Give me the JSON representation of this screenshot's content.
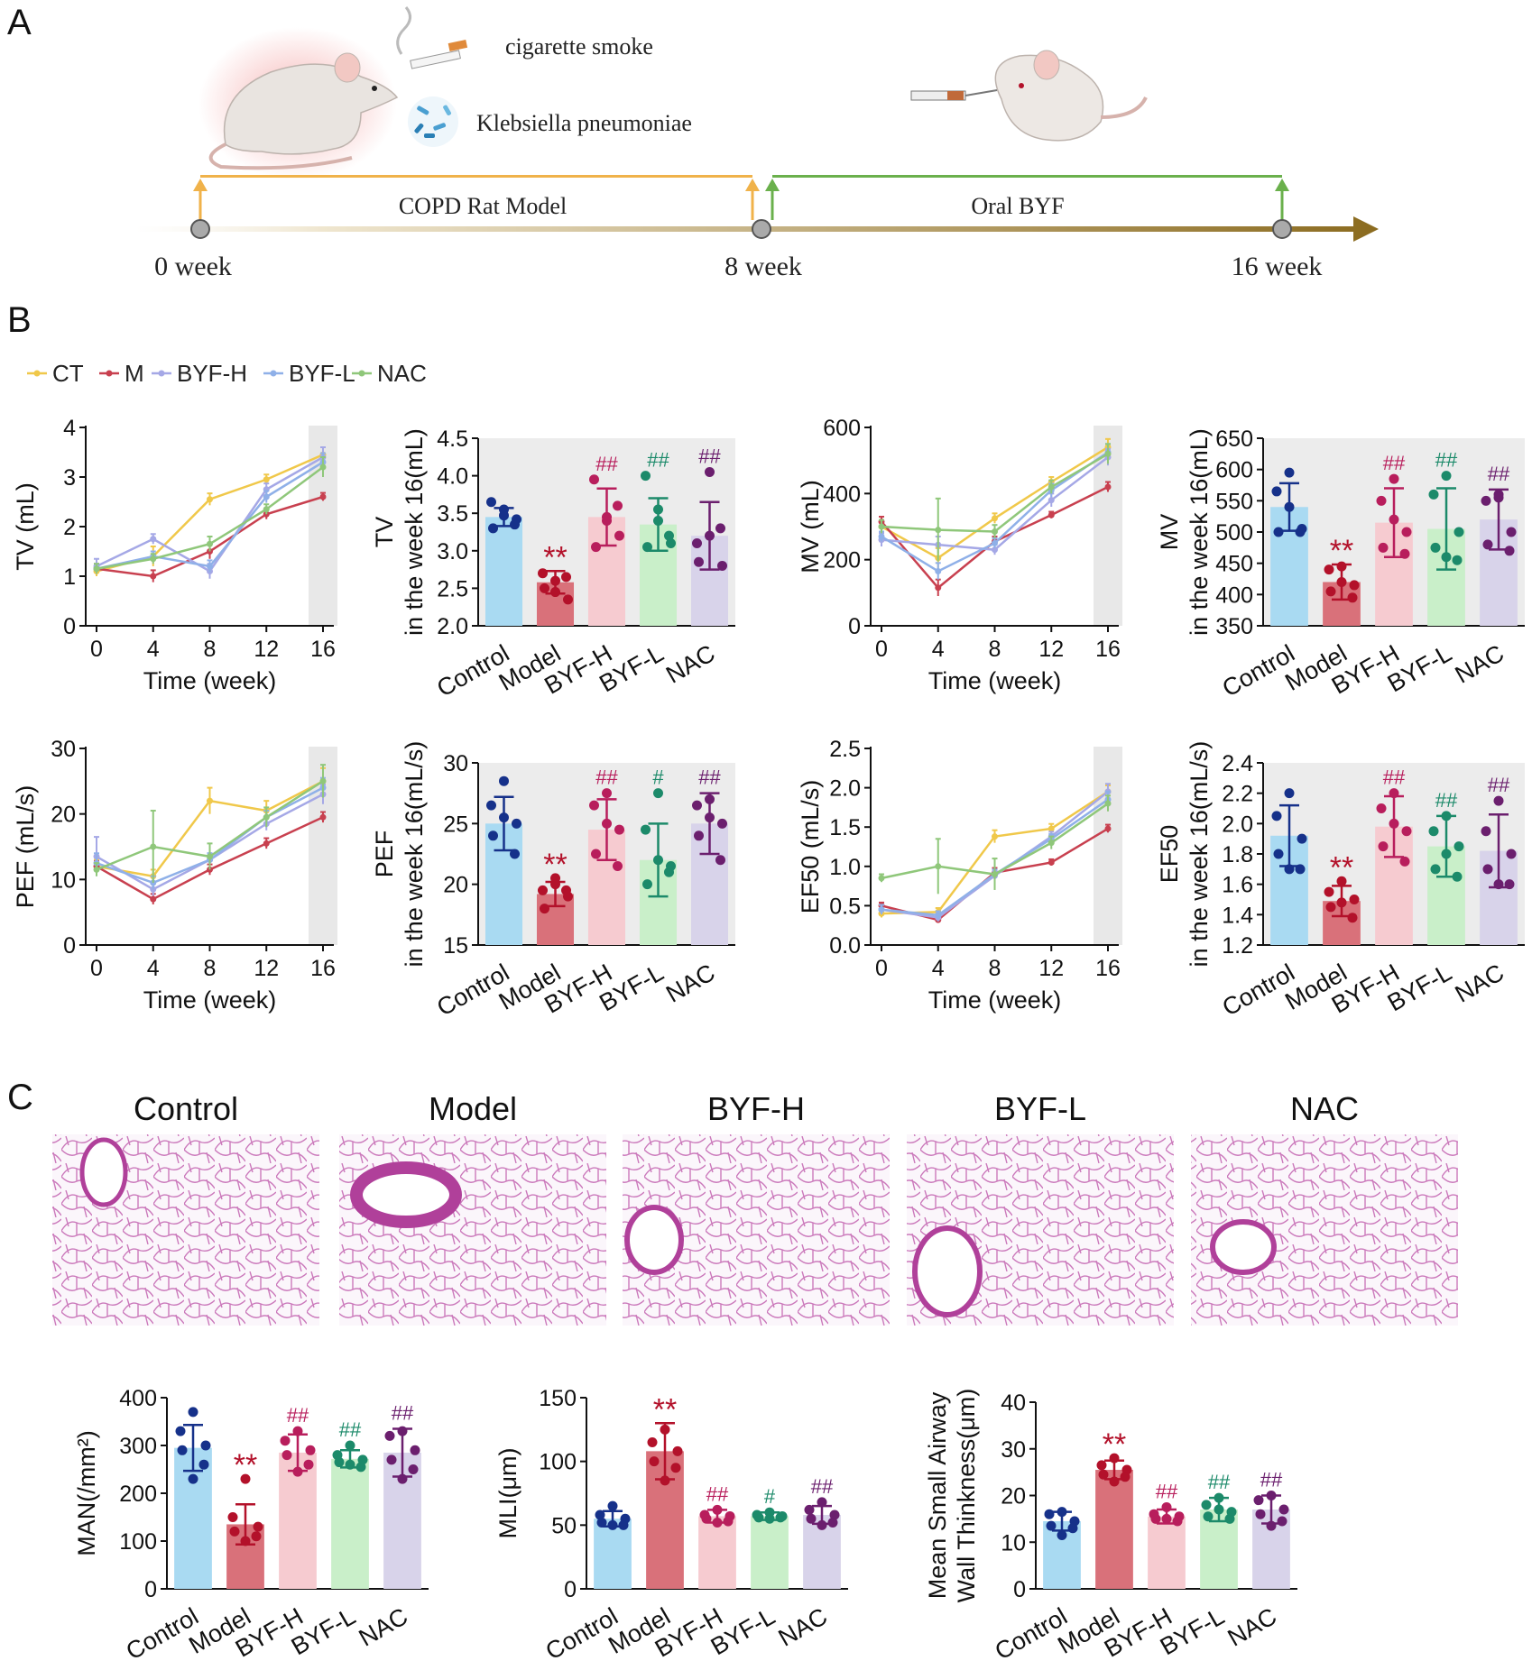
{
  "panel_letters": [
    "A",
    "B",
    "C"
  ],
  "timeline": {
    "smoke_label": "cigarette smoke",
    "bacteria_label": "Klebsiella pneumoniae",
    "phase1_label": "COPD Rat Model",
    "phase2_label": "Oral BYF",
    "ticks": [
      "0 week",
      "8 week",
      "16 week"
    ],
    "phase1_color": "#f0b24a",
    "phase2_color": "#6ab04c",
    "arrow_color": "#8b6b1f"
  },
  "groups": [
    "Control",
    "Model",
    "BYF-H",
    "BYF-L",
    "NAC"
  ],
  "group_colors": {
    "fill": [
      "#a9daf2",
      "#d9717a",
      "#f6cbd0",
      "#c9efc9",
      "#d8d3ea"
    ],
    "dot": [
      "#16318a",
      "#b3112a",
      "#b81e5c",
      "#1c8a6a",
      "#6b1f6e"
    ]
  },
  "line_legend": {
    "items": [
      "CT",
      "M",
      "BYF-H",
      "BYF-L",
      "NAC"
    ],
    "colors": [
      "#f0c84a",
      "#c8404f",
      "#a5a8e6",
      "#8fb0e8",
      "#8fc77a"
    ]
  },
  "histology_titles": [
    "Control",
    "Model",
    "BYF-H",
    "BYF-L",
    "NAC"
  ],
  "histology_color": "#b0409a",
  "chart_data": [
    {
      "id": "tv-line",
      "type": "line",
      "x": [
        0,
        4,
        8,
        12,
        16
      ],
      "xlabel": "Time (week)",
      "ylabel": "TV (mL)",
      "ylim": [
        0,
        4
      ],
      "yticks": [
        0,
        1,
        2,
        3,
        4
      ],
      "xticks": [
        0,
        4,
        8,
        12,
        16
      ],
      "highlight_x": 16,
      "series": [
        {
          "name": "CT",
          "values": [
            1.1,
            1.4,
            2.55,
            2.95,
            3.45
          ],
          "err": [
            0.1,
            0.2,
            0.12,
            0.1,
            0.15
          ]
        },
        {
          "name": "M",
          "values": [
            1.15,
            1.0,
            1.5,
            2.25,
            2.6
          ],
          "err": [
            0.1,
            0.12,
            0.15,
            0.1,
            0.08
          ]
        },
        {
          "name": "BYF-H",
          "values": [
            1.2,
            1.75,
            1.1,
            2.75,
            3.4
          ],
          "err": [
            0.15,
            0.1,
            0.15,
            0.12,
            0.2
          ]
        },
        {
          "name": "BYF-L",
          "values": [
            1.15,
            1.4,
            1.2,
            2.6,
            3.3
          ],
          "err": [
            0.1,
            0.1,
            0.12,
            0.12,
            0.18
          ]
        },
        {
          "name": "NAC",
          "values": [
            1.15,
            1.35,
            1.65,
            2.35,
            3.2
          ],
          "err": [
            0.1,
            0.1,
            0.15,
            0.1,
            0.2
          ]
        }
      ]
    },
    {
      "id": "tv-bar",
      "type": "bar",
      "ylabel": "TV",
      "ylabel2": "in the week 16(mL)",
      "ylim": [
        2.0,
        4.5
      ],
      "yticks": [
        "2.0",
        "2.5",
        "3.0",
        "3.5",
        "4.0",
        "4.5"
      ],
      "values": [
        3.45,
        2.58,
        3.45,
        3.35,
        3.2
      ],
      "err": [
        0.12,
        0.15,
        0.38,
        0.35,
        0.45
      ],
      "points": [
        [
          3.47,
          3.65,
          3.42,
          3.3,
          3.35,
          3.55
        ],
        [
          2.6,
          2.7,
          2.35,
          2.5,
          2.65,
          2.45
        ],
        [
          3.4,
          3.95,
          3.2,
          3.05,
          3.6,
          3.45
        ],
        [
          3.55,
          4.0,
          3.1,
          3.05,
          3.2,
          3.4
        ],
        [
          4.05,
          3.1,
          2.8,
          2.85,
          3.3,
          3.2
        ]
      ],
      "annotations": [
        "",
        "**",
        "##",
        "##",
        "##"
      ]
    },
    {
      "id": "mv-line",
      "type": "line",
      "x": [
        0,
        4,
        8,
        12,
        16
      ],
      "xlabel": "Time (week)",
      "ylabel": "MV (mL)",
      "ylim": [
        0,
        600
      ],
      "yticks": [
        0,
        200,
        400,
        600
      ],
      "xticks": [
        0,
        4,
        8,
        12,
        16
      ],
      "highlight_x": 16,
      "series": [
        {
          "name": "CT",
          "values": [
            300,
            205,
            325,
            435,
            540
          ],
          "err": [
            20,
            30,
            15,
            15,
            25
          ]
        },
        {
          "name": "M",
          "values": [
            315,
            115,
            255,
            335,
            420
          ],
          "err": [
            15,
            25,
            15,
            10,
            15
          ]
        },
        {
          "name": "BYF-H",
          "values": [
            260,
            245,
            230,
            380,
            510
          ],
          "err": [
            20,
            25,
            15,
            20,
            25
          ]
        },
        {
          "name": "BYF-L",
          "values": [
            270,
            165,
            250,
            410,
            525
          ],
          "err": [
            15,
            25,
            15,
            20,
            25
          ]
        },
        {
          "name": "NAC",
          "values": [
            300,
            290,
            285,
            420,
            520
          ],
          "err": [
            20,
            95,
            20,
            20,
            30
          ]
        }
      ]
    },
    {
      "id": "mv-bar",
      "type": "bar",
      "ylabel": "MV",
      "ylabel2": "in the week 16(mL)",
      "ylim": [
        350,
        650
      ],
      "yticks": [
        "350",
        "400",
        "450",
        "500",
        "550",
        "600",
        "650"
      ],
      "values": [
        540,
        420,
        515,
        505,
        520
      ],
      "err": [
        38,
        28,
        55,
        65,
        48
      ],
      "points": [
        [
          595,
          565,
          505,
          500,
          500,
          540
        ],
        [
          445,
          440,
          415,
          405,
          395,
          420
        ],
        [
          585,
          550,
          500,
          475,
          465,
          520
        ],
        [
          590,
          560,
          500,
          475,
          455,
          460
        ],
        [
          560,
          550,
          500,
          480,
          470,
          555
        ]
      ],
      "annotations": [
        "",
        "**",
        "##",
        "##",
        "##"
      ]
    },
    {
      "id": "pef-line",
      "type": "line",
      "x": [
        0,
        4,
        8,
        12,
        16
      ],
      "xlabel": "Time (week)",
      "ylabel": "PEF (mL/s)",
      "ylim": [
        0,
        30
      ],
      "yticks": [
        0,
        10,
        20,
        30
      ],
      "xticks": [
        0,
        4,
        8,
        12,
        16
      ],
      "highlight_x": 16,
      "series": [
        {
          "name": "CT",
          "values": [
            12,
            10.5,
            22,
            20.5,
            25
          ],
          "err": [
            1,
            1,
            2,
            1.5,
            2
          ]
        },
        {
          "name": "M",
          "values": [
            12,
            7,
            11.5,
            15.5,
            19.5
          ],
          "err": [
            0.8,
            0.8,
            0.8,
            0.8,
            0.8
          ]
        },
        {
          "name": "BYF-H",
          "values": [
            13.5,
            8.5,
            13,
            18.5,
            23
          ],
          "err": [
            3,
            1,
            1,
            1,
            1.5
          ]
        },
        {
          "name": "BYF-L",
          "values": [
            12.5,
            9.5,
            13,
            19.5,
            24
          ],
          "err": [
            1.5,
            1,
            1,
            1,
            1.5
          ]
        },
        {
          "name": "NAC",
          "values": [
            11.5,
            15,
            13.5,
            19.5,
            25
          ],
          "err": [
            1,
            5.5,
            2,
            1.5,
            2.5
          ]
        }
      ]
    },
    {
      "id": "pef-bar",
      "type": "bar",
      "ylabel": "PEF",
      "ylabel2": "in the week 16(mL/s)",
      "ylim": [
        15,
        30
      ],
      "yticks": [
        "15",
        "20",
        "25",
        "30"
      ],
      "values": [
        25,
        19.2,
        24.5,
        22,
        25
      ],
      "err": [
        2.2,
        1.0,
        2.5,
        3.0,
        2.5
      ],
      "points": [
        [
          28.5,
          26.5,
          25,
          24,
          22.5,
          25.5
        ],
        [
          20.5,
          19.5,
          19,
          18,
          19.5,
          20
        ],
        [
          27.5,
          26.5,
          24.5,
          22.5,
          21.5,
          25
        ],
        [
          27.5,
          24.5,
          21.5,
          20,
          21,
          22
        ],
        [
          27,
          26.5,
          25,
          24,
          22,
          25.5
        ]
      ],
      "annotations": [
        "",
        "**",
        "##",
        "#",
        "##"
      ]
    },
    {
      "id": "ef50-line",
      "type": "line",
      "x": [
        0,
        4,
        8,
        12,
        16
      ],
      "xlabel": "Time (week)",
      "ylabel": "EF50  (mL/s)",
      "ylim": [
        0,
        2.5
      ],
      "yticks": [
        "0.0",
        "0.5",
        "1.0",
        "1.5",
        "2.0",
        "2.5"
      ],
      "xticks": [
        0,
        4,
        8,
        12,
        16
      ],
      "highlight_x": 16,
      "series": [
        {
          "name": "CT",
          "values": [
            0.4,
            0.42,
            1.38,
            1.48,
            1.95
          ],
          "err": [
            0.05,
            0.05,
            0.08,
            0.06,
            0.08
          ]
        },
        {
          "name": "M",
          "values": [
            0.5,
            0.32,
            0.92,
            1.05,
            1.48
          ],
          "err": [
            0.04,
            0.03,
            0.06,
            0.04,
            0.05
          ]
        },
        {
          "name": "BYF-H",
          "values": [
            0.45,
            0.35,
            0.88,
            1.38,
            1.95
          ],
          "err": [
            0.06,
            0.05,
            0.06,
            0.06,
            0.1
          ]
        },
        {
          "name": "BYF-L",
          "values": [
            0.45,
            0.38,
            0.9,
            1.35,
            1.85
          ],
          "err": [
            0.06,
            0.05,
            0.06,
            0.06,
            0.1
          ]
        },
        {
          "name": "NAC",
          "values": [
            0.85,
            1.0,
            0.9,
            1.3,
            1.8
          ],
          "err": [
            0.05,
            0.35,
            0.2,
            0.08,
            0.1
          ]
        }
      ]
    },
    {
      "id": "ef50-bar",
      "type": "bar",
      "ylabel": "EF50",
      "ylabel2": "in the week 16(mL/s)",
      "ylim": [
        1.2,
        2.4
      ],
      "yticks": [
        "1.2",
        "1.4",
        "1.6",
        "1.8",
        "2.0",
        "2.2",
        "2.4"
      ],
      "values": [
        1.92,
        1.49,
        1.98,
        1.85,
        1.82
      ],
      "err": [
        0.2,
        0.1,
        0.2,
        0.2,
        0.24
      ],
      "points": [
        [
          2.2,
          2.05,
          1.9,
          1.8,
          1.7,
          1.7
        ],
        [
          1.62,
          1.55,
          1.5,
          1.45,
          1.38,
          1.48
        ],
        [
          2.2,
          2.1,
          1.95,
          1.85,
          1.75,
          2.0
        ],
        [
          2.05,
          1.95,
          1.85,
          1.7,
          1.65,
          1.8
        ],
        [
          2.15,
          1.95,
          1.8,
          1.7,
          1.6,
          1.6
        ]
      ],
      "annotations": [
        "",
        "**",
        "##",
        "##",
        "##"
      ]
    },
    {
      "id": "man-bar",
      "type": "bar",
      "ylabel": "MAN(/mm²)",
      "ylim": [
        0,
        400
      ],
      "yticks": [
        "0",
        "100",
        "200",
        "300",
        "400"
      ],
      "values": [
        295,
        135,
        285,
        272,
        285
      ],
      "err": [
        48,
        42,
        38,
        18,
        50
      ],
      "points": [
        [
          370,
          330,
          300,
          290,
          260,
          230
        ],
        [
          230,
          150,
          130,
          120,
          110,
          100
        ],
        [
          330,
          310,
          290,
          280,
          260,
          245
        ],
        [
          300,
          280,
          270,
          265,
          255,
          260
        ],
        [
          330,
          320,
          290,
          270,
          250,
          230
        ]
      ],
      "annotations": [
        "",
        "**",
        "##",
        "##",
        "##"
      ]
    },
    {
      "id": "mli-bar",
      "type": "bar",
      "ylabel": "MLI(μm)",
      "ylim": [
        0,
        150
      ],
      "yticks": [
        "0",
        "50",
        "100",
        "150"
      ],
      "values": [
        55,
        108,
        57,
        57,
        58
      ],
      "err": [
        6,
        22,
        5,
        3,
        7
      ],
      "points": [
        [
          65,
          58,
          55,
          52,
          50,
          50
        ],
        [
          125,
          115,
          108,
          100,
          95,
          85
        ],
        [
          62,
          58,
          57,
          55,
          53,
          52
        ],
        [
          60,
          58,
          57,
          56,
          56,
          55
        ],
        [
          68,
          62,
          58,
          55,
          52,
          50
        ]
      ],
      "annotations": [
        "**",
        "**",
        "##",
        "#",
        "##"
      ]
    },
    {
      "id": "wall-bar",
      "type": "bar",
      "ylabel": "Mean Small Airway",
      "ylabel2": "Wall Thinkness(μm)",
      "ylim": [
        0,
        40
      ],
      "yticks": [
        "0",
        "10",
        "20",
        "30",
        "40"
      ],
      "values": [
        14.5,
        25.5,
        15.5,
        17,
        17
      ],
      "err": [
        2,
        2,
        1.5,
        2.5,
        3
      ],
      "points": [
        [
          16.5,
          16,
          14.5,
          13.5,
          13,
          11.5
        ],
        [
          28,
          26.5,
          25.5,
          24.5,
          24,
          23
        ],
        [
          17.5,
          16,
          15.5,
          15,
          14.5,
          15
        ],
        [
          19.5,
          18,
          16.5,
          15.5,
          15,
          17
        ],
        [
          20,
          19,
          17,
          16,
          14.5,
          13.5
        ]
      ],
      "annotations": [
        "",
        "**",
        "##",
        "##",
        "##"
      ]
    }
  ]
}
